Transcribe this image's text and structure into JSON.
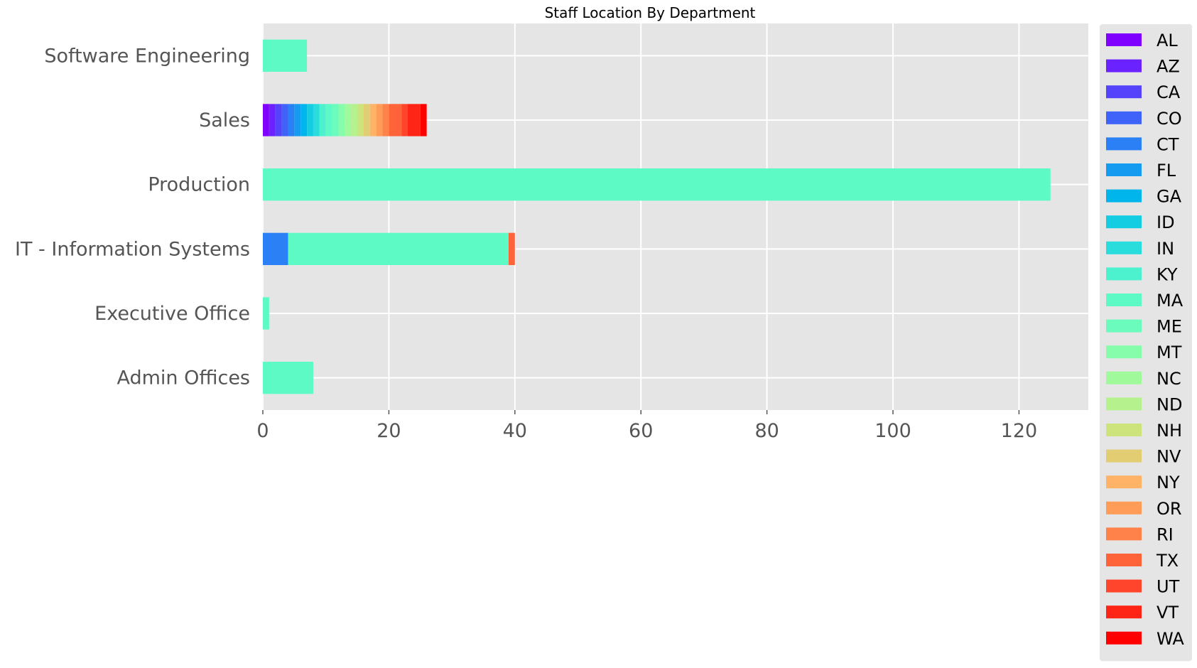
{
  "chart_data": {
    "type": "bar",
    "orientation": "horizontal",
    "stacked": true,
    "title": "Staff Location By Department",
    "xlabel": "",
    "ylabel": "",
    "xlim": [
      0,
      131
    ],
    "xticks": [
      "0",
      "20",
      "40",
      "60",
      "80",
      "100",
      "120"
    ],
    "grid": true,
    "legend": "right",
    "categories": [
      "Admin Offices",
      "Executive Office",
      "IT - Information Systems",
      "Production",
      "Sales",
      "Software Engineering"
    ],
    "series": [
      {
        "name": "AL",
        "color": "#8000ff",
        "values": [
          0,
          0,
          0,
          0,
          1,
          0
        ]
      },
      {
        "name": "AZ",
        "color": "#6a22fe",
        "values": [
          0,
          0,
          0,
          0,
          1,
          0
        ]
      },
      {
        "name": "CA",
        "color": "#5543fc",
        "values": [
          0,
          0,
          0,
          0,
          1,
          0
        ]
      },
      {
        "name": "CO",
        "color": "#3f63f9",
        "values": [
          0,
          0,
          0,
          0,
          1,
          0
        ]
      },
      {
        "name": "CT",
        "color": "#2a80f4",
        "values": [
          0,
          0,
          4,
          0,
          1,
          0
        ]
      },
      {
        "name": "FL",
        "color": "#159bef",
        "values": [
          0,
          0,
          0,
          0,
          1,
          0
        ]
      },
      {
        "name": "GA",
        "color": "#00b5eb",
        "values": [
          0,
          0,
          0,
          0,
          1,
          0
        ]
      },
      {
        "name": "ID",
        "color": "#15cde3",
        "values": [
          0,
          0,
          0,
          0,
          1,
          0
        ]
      },
      {
        "name": "IN",
        "color": "#2adddd",
        "values": [
          0,
          0,
          0,
          0,
          1,
          0
        ]
      },
      {
        "name": "KY",
        "color": "#4cf2ce",
        "values": [
          0,
          0,
          0,
          0,
          1,
          0
        ]
      },
      {
        "name": "MA",
        "color": "#5efac6",
        "values": [
          8,
          1,
          35,
          125,
          1,
          7
        ]
      },
      {
        "name": "ME",
        "color": "#6afbbd",
        "values": [
          0,
          0,
          0,
          0,
          1,
          0
        ]
      },
      {
        "name": "MT",
        "color": "#85fdab",
        "values": [
          0,
          0,
          0,
          0,
          1,
          0
        ]
      },
      {
        "name": "NC",
        "color": "#a0fa9b",
        "values": [
          0,
          0,
          0,
          0,
          1,
          0
        ]
      },
      {
        "name": "ND",
        "color": "#b5f28d",
        "values": [
          0,
          0,
          0,
          0,
          1,
          0
        ]
      },
      {
        "name": "NH",
        "color": "#cde37c",
        "values": [
          0,
          0,
          0,
          0,
          1,
          0
        ]
      },
      {
        "name": "NV",
        "color": "#e3cd72",
        "values": [
          0,
          0,
          0,
          0,
          1,
          0
        ]
      },
      {
        "name": "NY",
        "color": "#ffb367",
        "values": [
          0,
          0,
          0,
          0,
          1,
          0
        ]
      },
      {
        "name": "OR",
        "color": "#ff9c58",
        "values": [
          0,
          0,
          0,
          0,
          1,
          0
        ]
      },
      {
        "name": "RI",
        "color": "#ff824a",
        "values": [
          0,
          0,
          0,
          0,
          1,
          0
        ]
      },
      {
        "name": "TX",
        "color": "#ff633a",
        "values": [
          0,
          0,
          1,
          0,
          2,
          0
        ]
      },
      {
        "name": "UT",
        "color": "#ff452b",
        "values": [
          0,
          0,
          0,
          0,
          1,
          0
        ]
      },
      {
        "name": "VT",
        "color": "#ff2516",
        "values": [
          0,
          0,
          0,
          0,
          2,
          0
        ]
      },
      {
        "name": "WA",
        "color": "#ff0000",
        "values": [
          0,
          0,
          0,
          0,
          1,
          0
        ]
      }
    ]
  },
  "colors": {
    "plot_background": "#e5e5e5",
    "grid": "#ffffff",
    "tick_text": "#555555",
    "legend_background": "#e5e5e5"
  }
}
